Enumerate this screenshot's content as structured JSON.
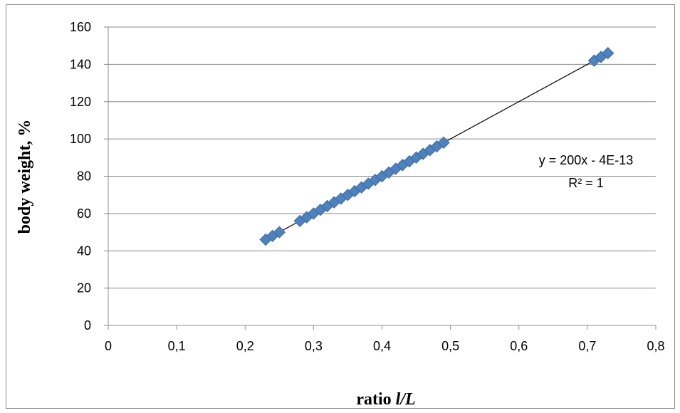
{
  "chart_data": {
    "type": "scatter",
    "xlabel_prefix": "ratio ",
    "xlabel_var": "l/L",
    "ylabel": "body weight, %",
    "xlim": [
      0,
      0.8
    ],
    "ylim": [
      0,
      160
    ],
    "x_ticks": [
      "0",
      "0,1",
      "0,2",
      "0,3",
      "0,4",
      "0,5",
      "0,6",
      "0,7",
      "0,8"
    ],
    "y_ticks": [
      "0",
      "20",
      "40",
      "60",
      "80",
      "100",
      "120",
      "140",
      "160"
    ],
    "grid": "horizontal",
    "marker": "diamond",
    "marker_color": "#4f81bd",
    "series": [
      {
        "x": [
          0.23,
          0.24,
          0.25,
          0.28,
          0.29,
          0.3,
          0.31,
          0.32,
          0.33,
          0.34,
          0.35,
          0.36,
          0.37,
          0.38,
          0.39,
          0.4,
          0.41,
          0.42,
          0.43,
          0.44,
          0.45,
          0.46,
          0.47,
          0.48,
          0.49,
          0.71,
          0.72,
          0.73
        ],
        "y": [
          46,
          48,
          50,
          56,
          58,
          60,
          62,
          64,
          66,
          68,
          70,
          72,
          74,
          76,
          78,
          80,
          82,
          84,
          86,
          88,
          90,
          92,
          94,
          96,
          98,
          142,
          144,
          146
        ]
      }
    ],
    "trendline": {
      "slope": 200,
      "intercept": 0,
      "x_range": [
        0.23,
        0.73
      ],
      "color": "#000000",
      "equation_text": "y = 200x - 4E-13",
      "r2_text": "R² = 1"
    }
  }
}
